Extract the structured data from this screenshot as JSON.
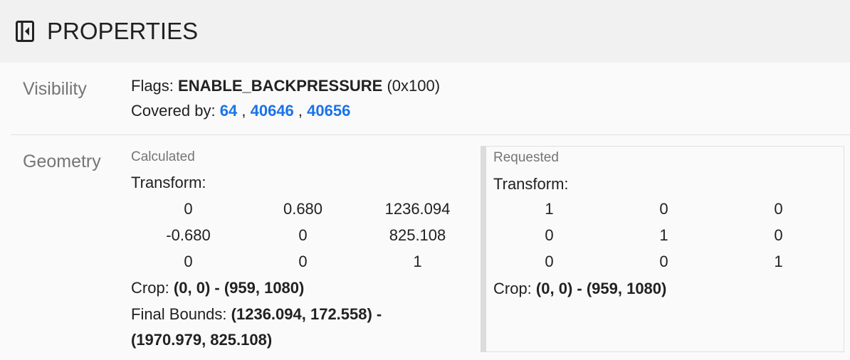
{
  "header": {
    "title": "PROPERTIES",
    "icon": "sidebar-collapse-icon"
  },
  "visibility": {
    "label": "Visibility",
    "flags_label": "Flags:",
    "flags_value": "ENABLE_BACKPRESSURE",
    "flags_hex": "(0x100)",
    "covered_label": "Covered by:",
    "covered_by": [
      "64",
      "40646",
      "40656"
    ],
    "sep": ","
  },
  "geometry": {
    "label": "Geometry",
    "calculated": {
      "title": "Calculated",
      "transform_label": "Transform:",
      "matrix": [
        [
          "0",
          "0.680",
          "1236.094"
        ],
        [
          "-0.680",
          "0",
          "825.108"
        ],
        [
          "0",
          "0",
          "1"
        ]
      ],
      "crop_label": "Crop:",
      "crop_value": "(0, 0) - (959, 1080)",
      "final_label": "Final Bounds:",
      "final_value_1": "(1236.094, 172.558) -",
      "final_value_2": "(1970.979, 825.108)"
    },
    "requested": {
      "title": "Requested",
      "transform_label": "Transform:",
      "matrix": [
        [
          "1",
          "0",
          "0"
        ],
        [
          "0",
          "1",
          "0"
        ],
        [
          "0",
          "0",
          "1"
        ]
      ],
      "crop_label": "Crop:",
      "crop_value": "(0, 0) - (959, 1080)"
    }
  },
  "colors": {
    "link": "#1a73e8",
    "header_bg": "#f1f1f1"
  }
}
